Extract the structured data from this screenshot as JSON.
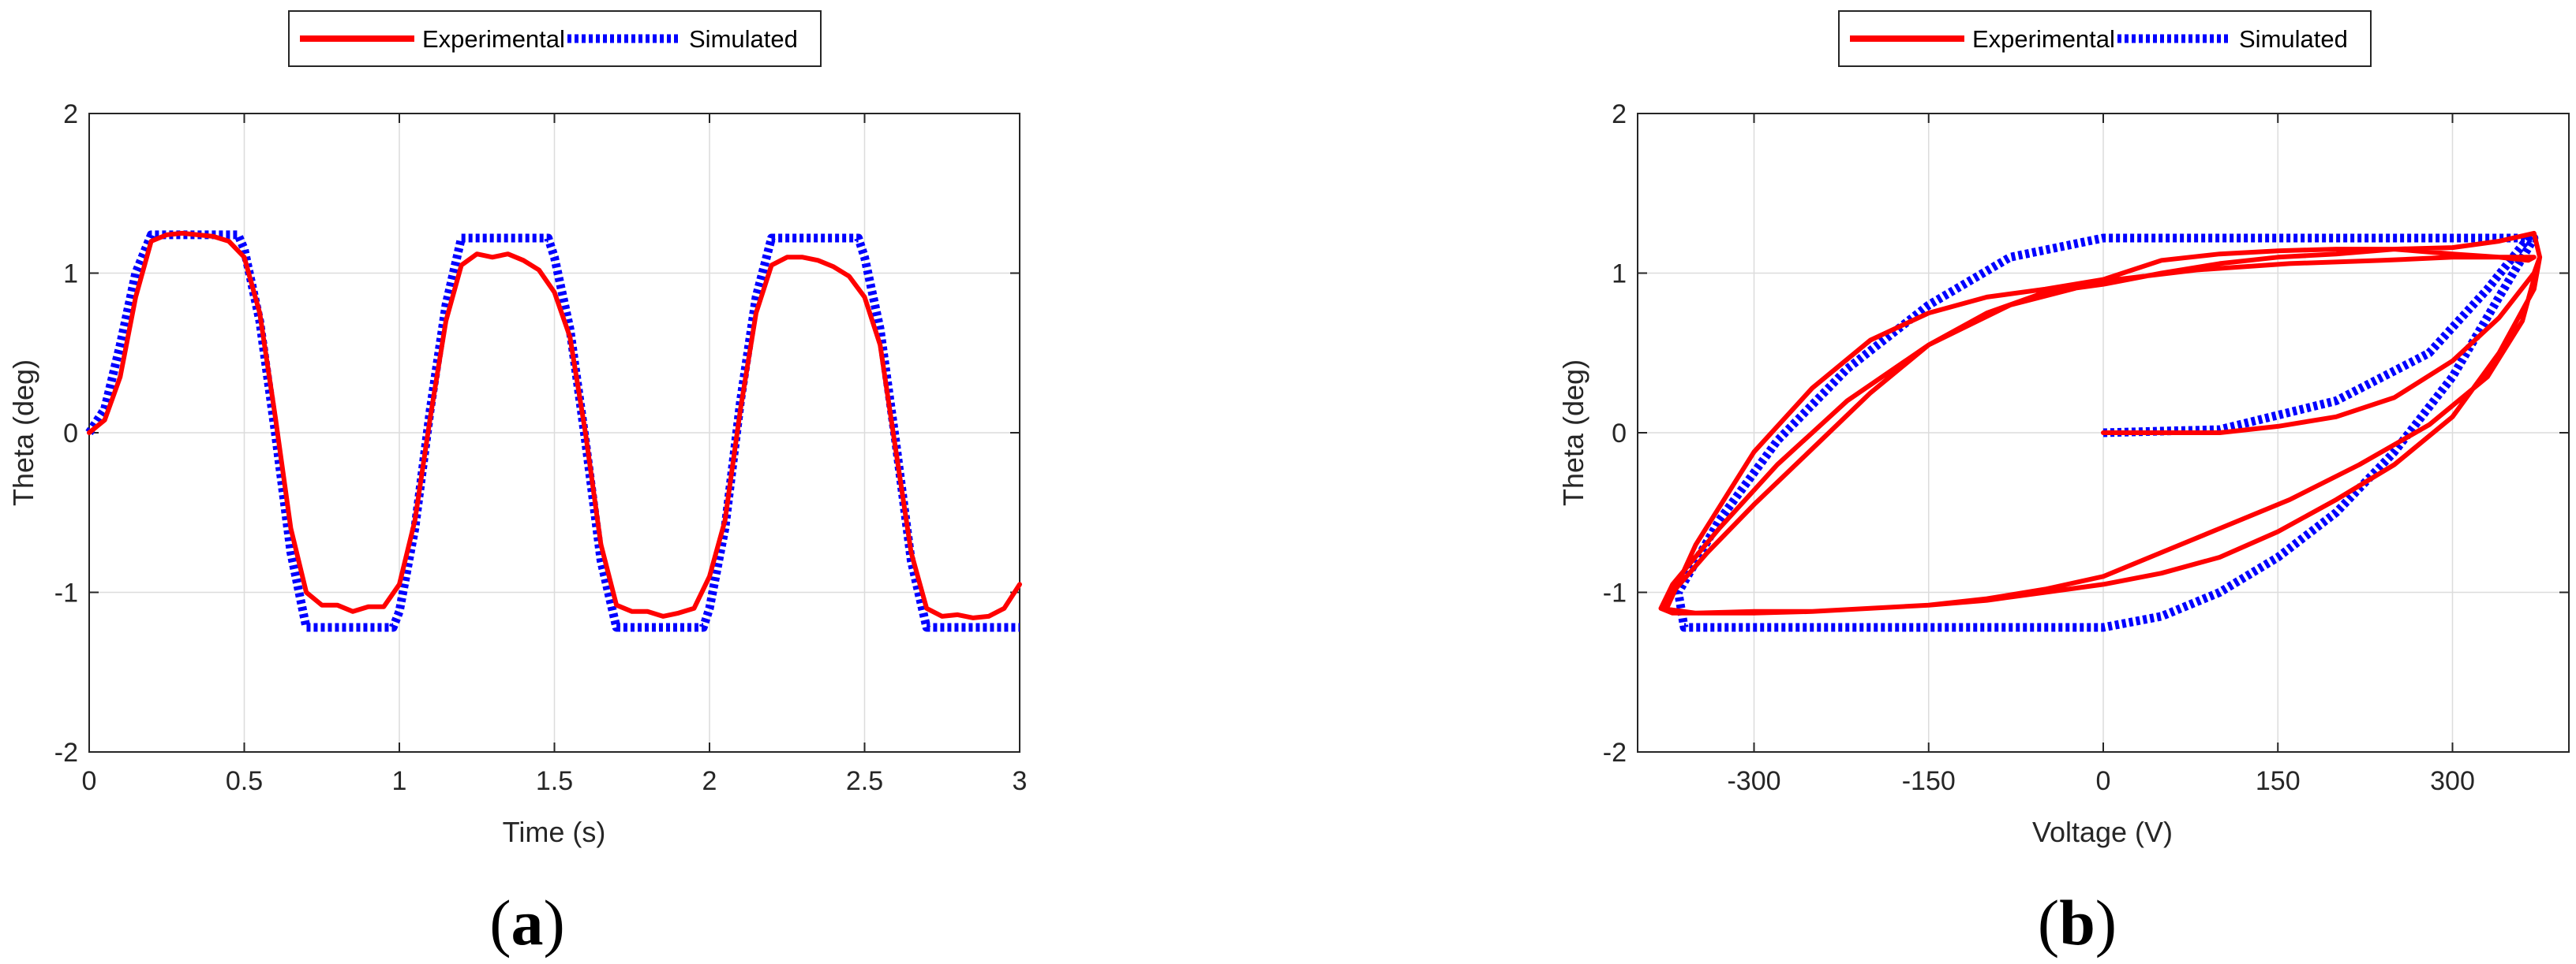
{
  "colors": {
    "experimental": "#ff0000",
    "simulated": "#0000ff",
    "grid": "#dcdcdc",
    "axis": "#262626"
  },
  "chart_data": [
    {
      "type": "line",
      "caption": {
        "open": "(",
        "letter": "a",
        "close": ")"
      },
      "xlabel": "Time (s)",
      "ylabel": "Theta (deg)",
      "xlim": [
        0,
        3
      ],
      "ylim": [
        -2,
        2
      ],
      "xticks": [
        0,
        0.5,
        1,
        1.5,
        2,
        2.5,
        3
      ],
      "xtick_labels": [
        "0",
        "0.5",
        "1",
        "1.5",
        "2",
        "2.5",
        "3"
      ],
      "yticks": [
        -2,
        -1,
        0,
        1,
        2
      ],
      "ytick_labels": [
        "-2",
        "-1",
        "0",
        "1",
        "2"
      ],
      "grid": true,
      "legend": {
        "placement": "top-center-outside",
        "orientation": "horizontal",
        "entries": [
          "Experimental",
          "Simulated"
        ]
      },
      "series": [
        {
          "name": "Experimental",
          "style": "solid",
          "x": [
            0,
            0.05,
            0.1,
            0.15,
            0.2,
            0.25,
            0.3,
            0.35,
            0.4,
            0.45,
            0.5,
            0.55,
            0.6,
            0.65,
            0.7,
            0.75,
            0.8,
            0.85,
            0.9,
            0.95,
            1.0,
            1.05,
            1.1,
            1.15,
            1.2,
            1.25,
            1.3,
            1.35,
            1.4,
            1.45,
            1.5,
            1.55,
            1.6,
            1.65,
            1.7,
            1.75,
            1.8,
            1.85,
            1.9,
            1.95,
            2.0,
            2.05,
            2.1,
            2.15,
            2.2,
            2.25,
            2.3,
            2.35,
            2.4,
            2.45,
            2.5,
            2.55,
            2.6,
            2.65,
            2.7,
            2.75,
            2.8,
            2.85,
            2.9,
            2.95,
            3.0
          ],
          "y": [
            0,
            0.08,
            0.35,
            0.85,
            1.2,
            1.24,
            1.25,
            1.24,
            1.23,
            1.2,
            1.1,
            0.75,
            0.1,
            -0.6,
            -1.0,
            -1.08,
            -1.08,
            -1.12,
            -1.09,
            -1.09,
            -0.95,
            -0.55,
            0.1,
            0.7,
            1.05,
            1.12,
            1.1,
            1.12,
            1.08,
            1.02,
            0.88,
            0.6,
            0.0,
            -0.7,
            -1.08,
            -1.12,
            -1.12,
            -1.15,
            -1.13,
            -1.1,
            -0.9,
            -0.55,
            0.15,
            0.75,
            1.05,
            1.1,
            1.1,
            1.08,
            1.04,
            0.98,
            0.85,
            0.55,
            -0.1,
            -0.75,
            -1.1,
            -1.15,
            -1.14,
            -1.16,
            -1.15,
            -1.1,
            -0.95
          ]
        },
        {
          "name": "Simulated",
          "style": "dotted",
          "x": [
            0,
            0.05,
            0.1,
            0.15,
            0.2,
            0.3,
            0.4,
            0.48,
            0.5,
            0.55,
            0.6,
            0.65,
            0.7,
            0.8,
            0.9,
            0.98,
            1.0,
            1.05,
            1.1,
            1.15,
            1.2,
            1.3,
            1.4,
            1.48,
            1.5,
            1.55,
            1.6,
            1.65,
            1.7,
            1.8,
            1.9,
            1.98,
            2.0,
            2.05,
            2.1,
            2.15,
            2.2,
            2.3,
            2.4,
            2.48,
            2.5,
            2.55,
            2.6,
            2.65,
            2.7,
            2.8,
            2.9,
            3.0
          ],
          "y": [
            0,
            0.15,
            0.55,
            1.0,
            1.24,
            1.24,
            1.24,
            1.24,
            1.15,
            0.7,
            0.0,
            -0.75,
            -1.22,
            -1.22,
            -1.22,
            -1.22,
            -1.12,
            -0.6,
            0.15,
            0.8,
            1.22,
            1.22,
            1.22,
            1.22,
            1.1,
            0.65,
            -0.05,
            -0.8,
            -1.22,
            -1.22,
            -1.22,
            -1.22,
            -1.1,
            -0.6,
            0.2,
            0.85,
            1.22,
            1.22,
            1.22,
            1.22,
            1.1,
            0.65,
            -0.05,
            -0.8,
            -1.22,
            -1.22,
            -1.22,
            -1.22
          ]
        }
      ]
    },
    {
      "type": "line",
      "caption": {
        "open": "(",
        "letter": "b",
        "close": ")"
      },
      "xlabel": "Voltage (V)",
      "ylabel": "Theta (deg)",
      "xlim": [
        -400,
        400
      ],
      "ylim": [
        -2,
        2
      ],
      "xticks": [
        -300,
        -150,
        0,
        150,
        300
      ],
      "xtick_labels": [
        "-300",
        "-150",
        "0",
        "150",
        "300"
      ],
      "yticks": [
        -2,
        -1,
        0,
        1,
        2
      ],
      "ytick_labels": [
        "-2",
        "-1",
        "0",
        "1",
        "2"
      ],
      "grid": true,
      "legend": {
        "placement": "top-center-outside",
        "orientation": "horizontal",
        "entries": [
          "Experimental",
          "Simulated"
        ]
      },
      "series": [
        {
          "name": "Experimental",
          "style": "solid",
          "x": [
            0,
            50,
            100,
            150,
            200,
            250,
            300,
            340,
            370,
            375,
            370,
            340,
            300,
            250,
            200,
            150,
            100,
            50,
            0,
            -50,
            -100,
            -150,
            -200,
            -250,
            -300,
            -340,
            -370,
            -380,
            -370,
            -340,
            -300,
            -250,
            -200,
            -150,
            -100,
            -50,
            0,
            50,
            100,
            150,
            200,
            250,
            300,
            340,
            370,
            375,
            360,
            330,
            280,
            220,
            160,
            100,
            50,
            0,
            -50,
            -100,
            -150,
            -200,
            -250,
            -300,
            -350,
            -380,
            -370,
            -330,
            -280,
            -220,
            -150,
            -80,
            0,
            80,
            160,
            240,
            300,
            340,
            370,
            365,
            340,
            300,
            250,
            200,
            150,
            100,
            50,
            0,
            -50,
            -100,
            -150,
            -200,
            -250,
            -300,
            -350,
            -375
          ],
          "y": [
            0,
            0,
            0,
            0.04,
            0.1,
            0.22,
            0.45,
            0.72,
            1.0,
            1.1,
            0.9,
            0.5,
            0.1,
            -0.2,
            -0.42,
            -0.62,
            -0.78,
            -0.88,
            -0.95,
            -1.0,
            -1.05,
            -1.08,
            -1.1,
            -1.12,
            -1.13,
            -1.13,
            -1.13,
            -1.1,
            -1.0,
            -0.75,
            -0.45,
            -0.1,
            0.25,
            0.55,
            0.75,
            0.88,
            0.93,
            1.0,
            1.06,
            1.1,
            1.12,
            1.15,
            1.16,
            1.2,
            1.25,
            1.1,
            0.7,
            0.35,
            0.05,
            -0.2,
            -0.42,
            -0.6,
            -0.75,
            -0.9,
            -0.98,
            -1.04,
            -1.08,
            -1.1,
            -1.12,
            -1.12,
            -1.13,
            -1.1,
            -0.95,
            -0.6,
            -0.2,
            0.2,
            0.55,
            0.8,
            0.95,
            1.02,
            1.06,
            1.08,
            1.1,
            1.1,
            1.1,
            1.08,
            1.1,
            1.12,
            1.15,
            1.15,
            1.14,
            1.12,
            1.08,
            0.96,
            0.9,
            0.85,
            0.75,
            0.58,
            0.28,
            -0.12,
            -0.7,
            -1.1
          ]
        },
        {
          "name": "Simulated",
          "style": "dotted",
          "x": [
            0,
            100,
            200,
            280,
            330,
            365,
            370,
            340,
            300,
            250,
            200,
            150,
            100,
            50,
            0,
            -50,
            -100,
            -200,
            -300,
            -360,
            -365,
            -330,
            -280,
            -220,
            -150,
            -80,
            0,
            50,
            100,
            200,
            300,
            365,
            370
          ],
          "y": [
            0,
            0.02,
            0.2,
            0.5,
            0.9,
            1.22,
            1.22,
            0.85,
            0.35,
            -0.12,
            -0.5,
            -0.78,
            -1.0,
            -1.15,
            -1.22,
            -1.22,
            -1.22,
            -1.22,
            -1.22,
            -1.22,
            -1.0,
            -0.55,
            -0.05,
            0.4,
            0.8,
            1.1,
            1.22,
            1.22,
            1.22,
            1.22,
            1.22,
            1.22,
            1.22
          ]
        }
      ]
    }
  ]
}
